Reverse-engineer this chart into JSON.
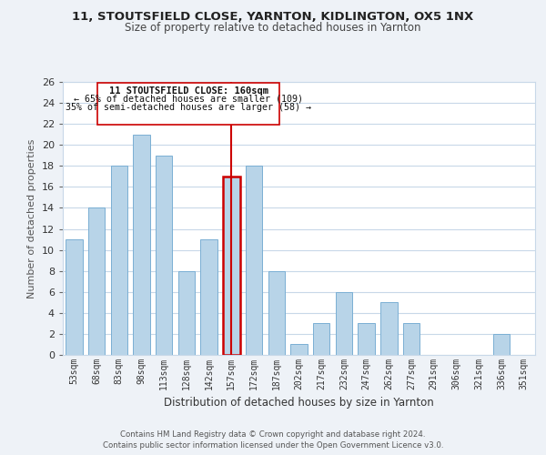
{
  "title1": "11, STOUTSFIELD CLOSE, YARNTON, KIDLINGTON, OX5 1NX",
  "title2": "Size of property relative to detached houses in Yarnton",
  "xlabel": "Distribution of detached houses by size in Yarnton",
  "ylabel": "Number of detached properties",
  "bar_labels": [
    "53sqm",
    "68sqm",
    "83sqm",
    "98sqm",
    "113sqm",
    "128sqm",
    "142sqm",
    "157sqm",
    "172sqm",
    "187sqm",
    "202sqm",
    "217sqm",
    "232sqm",
    "247sqm",
    "262sqm",
    "277sqm",
    "291sqm",
    "306sqm",
    "321sqm",
    "336sqm",
    "351sqm"
  ],
  "bar_values": [
    11,
    14,
    18,
    21,
    19,
    8,
    11,
    17,
    18,
    8,
    1,
    3,
    6,
    3,
    5,
    3,
    0,
    0,
    0,
    2,
    0
  ],
  "bar_color": "#b8d4e8",
  "bar_edge_color": "#7aafd4",
  "highlight_index": 7,
  "highlight_color": "#cc0000",
  "annotation_title": "11 STOUTSFIELD CLOSE: 160sqm",
  "annotation_line1": "← 65% of detached houses are smaller (109)",
  "annotation_line2": "35% of semi-detached houses are larger (58) →",
  "ylim": [
    0,
    26
  ],
  "yticks": [
    0,
    2,
    4,
    6,
    8,
    10,
    12,
    14,
    16,
    18,
    20,
    22,
    24,
    26
  ],
  "footer1": "Contains HM Land Registry data © Crown copyright and database right 2024.",
  "footer2": "Contains public sector information licensed under the Open Government Licence v3.0.",
  "bg_color": "#eef2f7",
  "plot_bg_color": "#ffffff",
  "grid_color": "#c8d8e8"
}
